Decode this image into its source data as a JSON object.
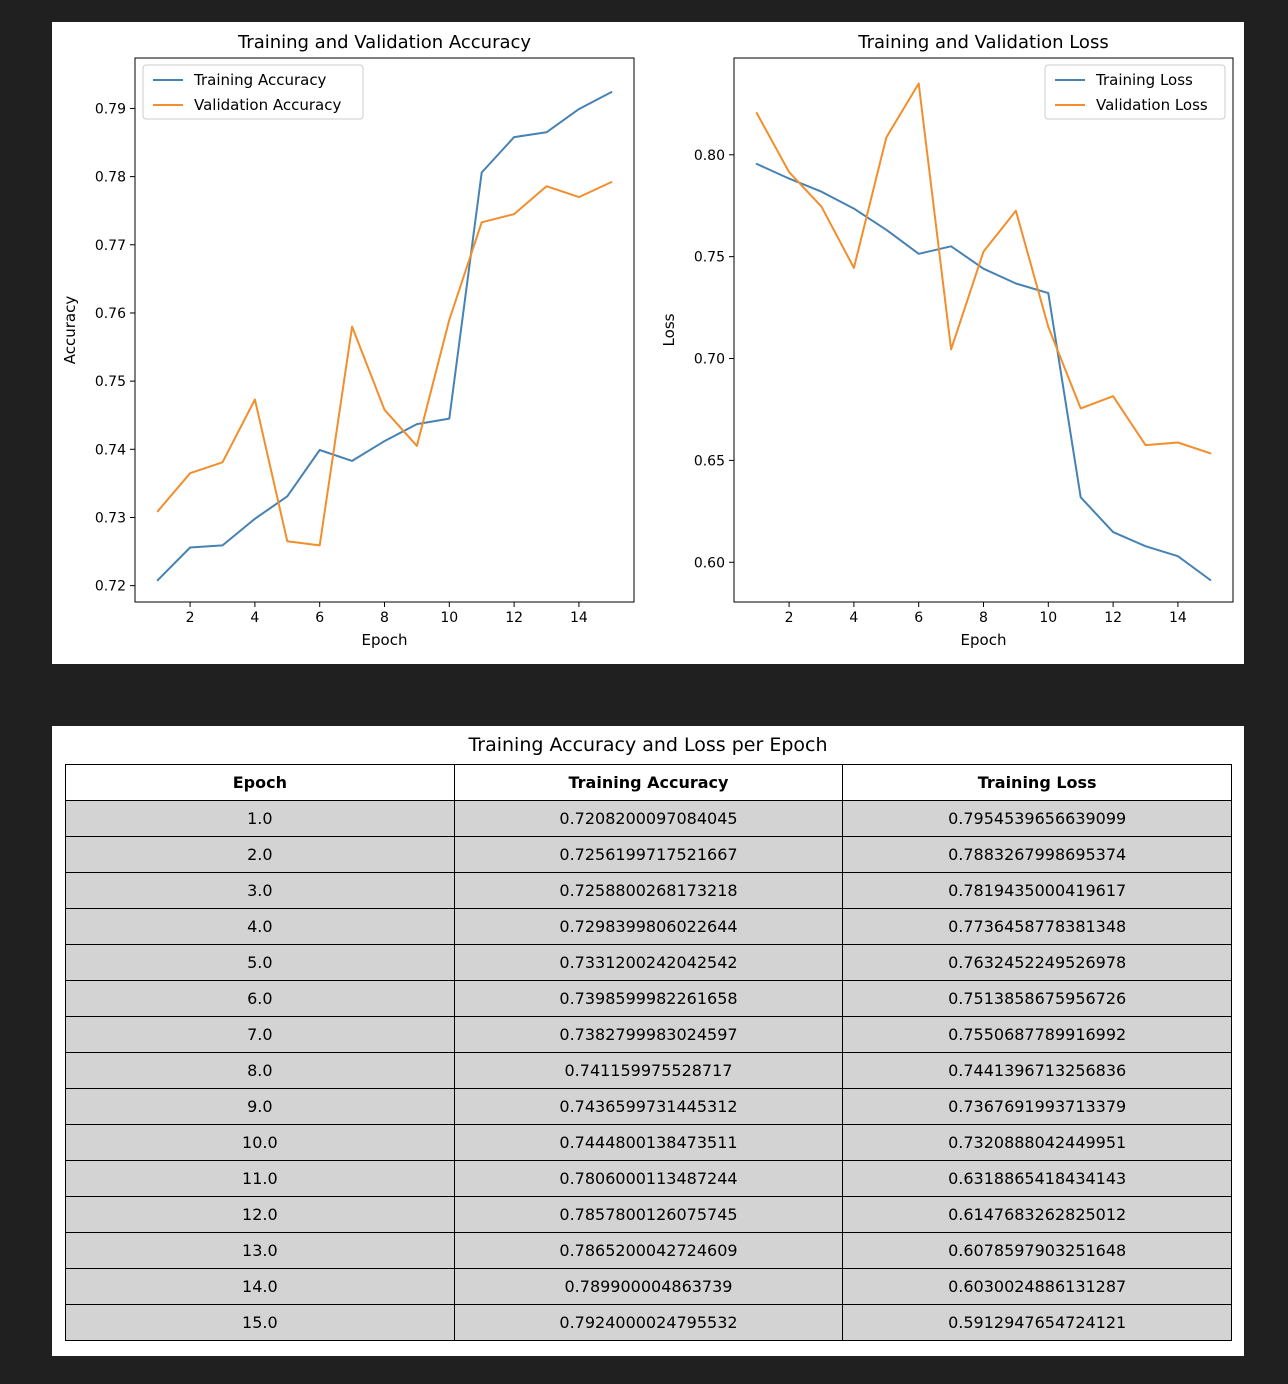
{
  "chart_data": [
    {
      "type": "line",
      "title": "Training and Validation Accuracy",
      "xlabel": "Epoch",
      "ylabel": "Accuracy",
      "xlim": [
        0.3,
        15.7
      ],
      "ylim": [
        0.7176,
        0.7974
      ],
      "xticks": [
        2,
        4,
        6,
        8,
        10,
        12,
        14
      ],
      "yticks": [
        0.72,
        0.73,
        0.74,
        0.75,
        0.76,
        0.77,
        0.78,
        0.79
      ],
      "ytick_labels": [
        "0.72",
        "0.73",
        "0.74",
        "0.75",
        "0.76",
        "0.77",
        "0.78",
        "0.79"
      ],
      "legend_position": "upper-left",
      "x": [
        1,
        2,
        3,
        4,
        5,
        6,
        7,
        8,
        9,
        10,
        11,
        12,
        13,
        14,
        15
      ],
      "series": [
        {
          "name": "Training Accuracy",
          "color": "#4682b4",
          "values": [
            0.7208,
            0.7256,
            0.7259,
            0.7298,
            0.7331,
            0.7399,
            0.7383,
            0.7412,
            0.7437,
            0.7445,
            0.7806,
            0.7858,
            0.7865,
            0.7899,
            0.7924
          ]
        },
        {
          "name": "Validation Accuracy",
          "color": "#f28e2b",
          "values": [
            0.7309,
            0.7365,
            0.7381,
            0.7473,
            0.7265,
            0.7259,
            0.758,
            0.7458,
            0.7405,
            0.759,
            0.7733,
            0.7745,
            0.7786,
            0.777,
            0.7792
          ]
        }
      ]
    },
    {
      "type": "line",
      "title": "Training and Validation Loss",
      "xlabel": "Epoch",
      "ylabel": "Loss",
      "xlim": [
        0.3,
        15.7
      ],
      "ylim": [
        0.5805,
        0.8475
      ],
      "xticks": [
        2,
        4,
        6,
        8,
        10,
        12,
        14
      ],
      "yticks": [
        0.6,
        0.65,
        0.7,
        0.75,
        0.8
      ],
      "ytick_labels": [
        "0.60",
        "0.65",
        "0.70",
        "0.75",
        "0.80"
      ],
      "legend_position": "upper-right",
      "x": [
        1,
        2,
        3,
        4,
        5,
        6,
        7,
        8,
        9,
        10,
        11,
        12,
        13,
        14,
        15
      ],
      "series": [
        {
          "name": "Training Loss",
          "color": "#4682b4",
          "values": [
            0.7955,
            0.7883,
            0.7819,
            0.7736,
            0.7632,
            0.7514,
            0.7551,
            0.7441,
            0.7368,
            0.7321,
            0.6319,
            0.6148,
            0.6079,
            0.603,
            0.5913
          ]
        },
        {
          "name": "Validation Loss",
          "color": "#f28e2b",
          "values": [
            0.8205,
            0.7915,
            0.7745,
            0.7445,
            0.8085,
            0.835,
            0.7045,
            0.7525,
            0.7725,
            0.7155,
            0.6755,
            0.6815,
            0.6575,
            0.6588,
            0.6535
          ]
        }
      ]
    }
  ],
  "table": {
    "title": "Training Accuracy and Loss per Epoch",
    "columns": [
      "Epoch",
      "Training Accuracy",
      "Training Loss"
    ],
    "rows": [
      [
        "1.0",
        "0.7208200097084045",
        "0.7954539656639099"
      ],
      [
        "2.0",
        "0.7256199717521667",
        "0.7883267998695374"
      ],
      [
        "3.0",
        "0.7258800268173218",
        "0.7819435000419617"
      ],
      [
        "4.0",
        "0.7298399806022644",
        "0.7736458778381348"
      ],
      [
        "5.0",
        "0.7331200242042542",
        "0.7632452249526978"
      ],
      [
        "6.0",
        "0.7398599982261658",
        "0.7513858675956726"
      ],
      [
        "7.0",
        "0.7382799983024597",
        "0.7550687789916992"
      ],
      [
        "8.0",
        "0.741159975528717",
        "0.7441396713256836"
      ],
      [
        "9.0",
        "0.7436599731445312",
        "0.7367691993713379"
      ],
      [
        "10.0",
        "0.7444800138473511",
        "0.7320888042449951"
      ],
      [
        "11.0",
        "0.7806000113487244",
        "0.6318865418434143"
      ],
      [
        "12.0",
        "0.7857800126075745",
        "0.6147683262825012"
      ],
      [
        "13.0",
        "0.7865200042724609",
        "0.6078597903251648"
      ],
      [
        "14.0",
        "0.789900004863739",
        "0.6030024886131287"
      ],
      [
        "15.0",
        "0.7924000024795532",
        "0.5912947654724121"
      ]
    ]
  }
}
